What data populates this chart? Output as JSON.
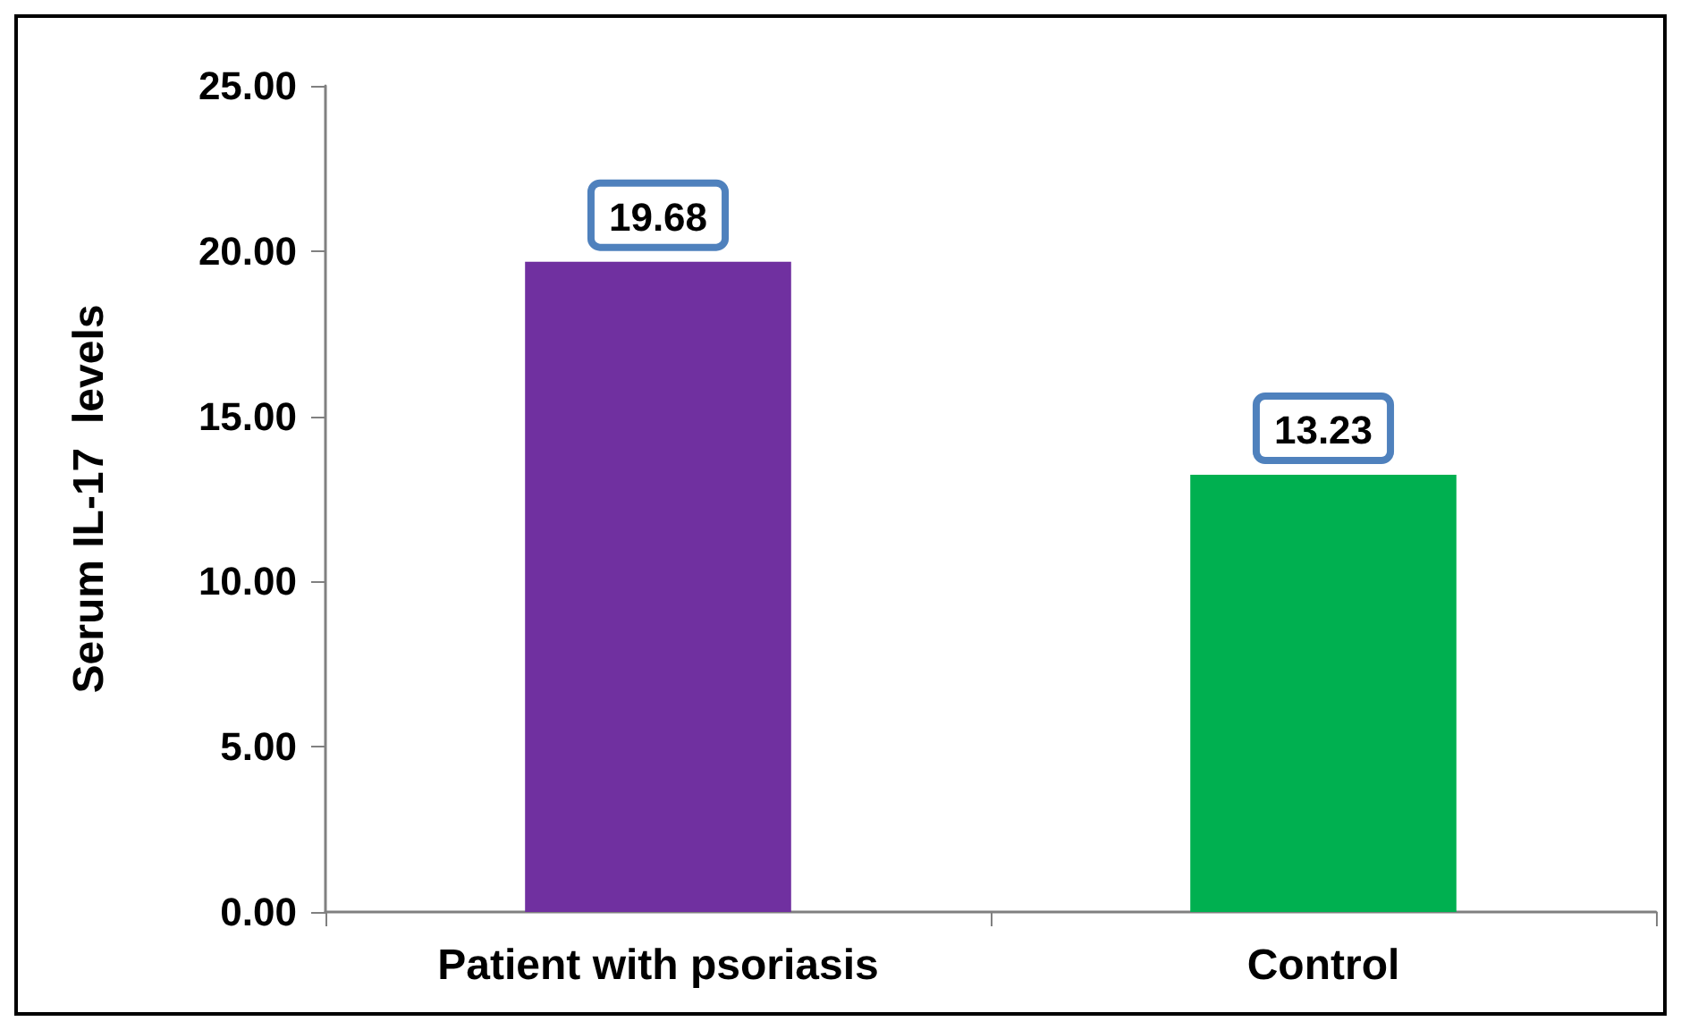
{
  "chart_data": {
    "type": "bar",
    "ylabel": "Serum IL-17  levels",
    "categories": [
      "Patient with psoriasis",
      "Control"
    ],
    "values": [
      19.68,
      13.23
    ],
    "colors": [
      "#7030a0",
      "#00b050"
    ],
    "ylim": [
      0,
      25
    ],
    "yticks": [
      {
        "value": 0,
        "label": "0.00"
      },
      {
        "value": 5,
        "label": "5.00"
      },
      {
        "value": 10,
        "label": "10.00"
      },
      {
        "value": 15,
        "label": "15.00"
      },
      {
        "value": 20,
        "label": "20.00"
      },
      {
        "value": 25,
        "label": "25.00"
      }
    ],
    "data_labels": true
  }
}
